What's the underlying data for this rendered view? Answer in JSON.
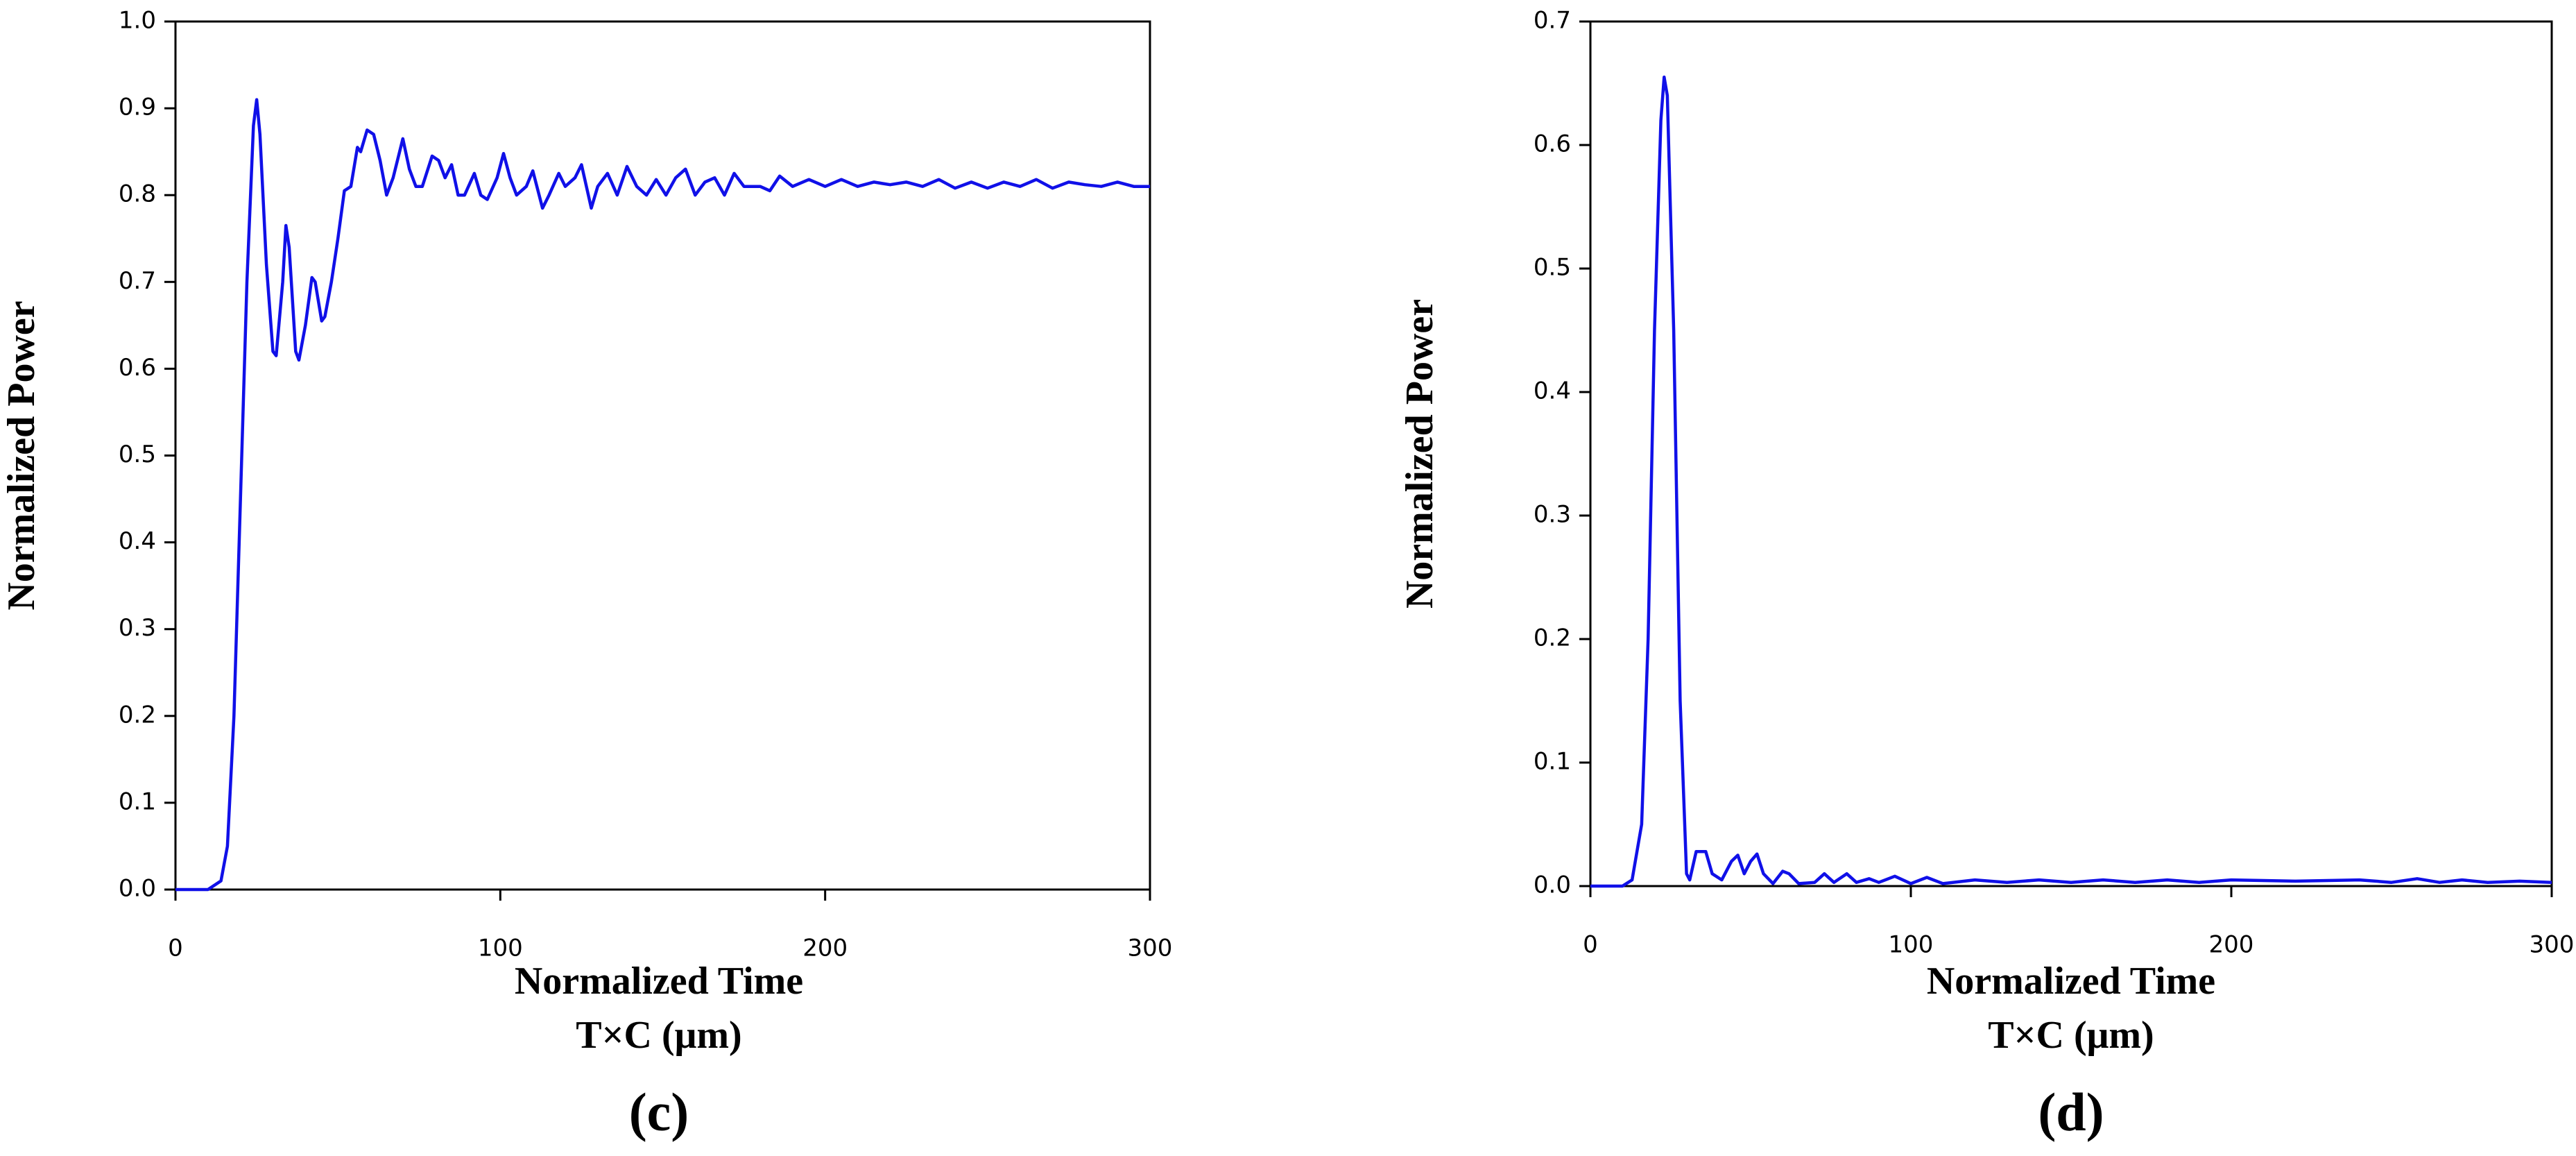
{
  "chart_data": [
    {
      "type": "line",
      "panel_label": "(c)",
      "xlabel": "Normalized Time",
      "xlabel_unit": "T×C (μm)",
      "ylabel": "Normalized Power",
      "color": "#1010e8",
      "xlim": [
        0,
        300
      ],
      "xticks": [
        0,
        100,
        200,
        300
      ],
      "ylim": [
        0,
        1
      ],
      "yticks": [
        {
          "value": 0,
          "label": "0.0"
        },
        0.1,
        0.2,
        0.3,
        0.4,
        0.5,
        0.6,
        0.7,
        0.8,
        0.9,
        {
          "value": 1,
          "label": "1.0"
        }
      ],
      "x": [
        0,
        10,
        14,
        16,
        18,
        20,
        22,
        24,
        25,
        26,
        28,
        30,
        31,
        33,
        34,
        35,
        37,
        38,
        40,
        42,
        43,
        45,
        46,
        48,
        50,
        52,
        54,
        56,
        57,
        59,
        61,
        63,
        65,
        67,
        70,
        72,
        74,
        76,
        79,
        81,
        83,
        85,
        87,
        89,
        92,
        94,
        96,
        99,
        101,
        103,
        105,
        108,
        110,
        113,
        115,
        118,
        120,
        123,
        125,
        128,
        130,
        133,
        136,
        139,
        142,
        145,
        148,
        151,
        154,
        157,
        160,
        163,
        166,
        169,
        172,
        175,
        180,
        183,
        186,
        190,
        195,
        200,
        205,
        210,
        215,
        220,
        225,
        230,
        235,
        240,
        245,
        250,
        255,
        260,
        265,
        270,
        275,
        280,
        285,
        290,
        295,
        300
      ],
      "values": [
        0,
        0,
        0.01,
        0.05,
        0.2,
        0.45,
        0.7,
        0.88,
        0.91,
        0.87,
        0.72,
        0.62,
        0.615,
        0.7,
        0.765,
        0.74,
        0.62,
        0.61,
        0.65,
        0.705,
        0.7,
        0.655,
        0.66,
        0.7,
        0.75,
        0.805,
        0.81,
        0.855,
        0.85,
        0.875,
        0.87,
        0.84,
        0.8,
        0.82,
        0.865,
        0.83,
        0.81,
        0.81,
        0.845,
        0.84,
        0.82,
        0.835,
        0.8,
        0.8,
        0.825,
        0.8,
        0.795,
        0.82,
        0.848,
        0.82,
        0.8,
        0.81,
        0.828,
        0.785,
        0.8,
        0.825,
        0.81,
        0.82,
        0.835,
        0.785,
        0.81,
        0.825,
        0.8,
        0.833,
        0.81,
        0.8,
        0.818,
        0.8,
        0.82,
        0.83,
        0.8,
        0.815,
        0.82,
        0.8,
        0.825,
        0.81,
        0.81,
        0.805,
        0.822,
        0.81,
        0.818,
        0.81,
        0.818,
        0.81,
        0.815,
        0.812,
        0.815,
        0.81,
        0.818,
        0.808,
        0.815,
        0.808,
        0.815,
        0.81,
        0.818,
        0.808,
        0.815,
        0.812,
        0.81,
        0.815,
        0.81,
        0.81
      ]
    },
    {
      "type": "line",
      "panel_label": "(d)",
      "xlabel": "Normalized Time",
      "xlabel_unit": "T×C (μm)",
      "ylabel": "Normalized Power",
      "color": "#1010e8",
      "xlim": [
        0,
        300
      ],
      "xticks": [
        0,
        100,
        200,
        300
      ],
      "ylim": [
        0,
        0.7
      ],
      "yticks": [
        {
          "value": 0,
          "label": "0.0"
        },
        0.1,
        0.2,
        0.3,
        0.4,
        0.5,
        0.6,
        0.7
      ],
      "x": [
        0,
        10,
        13,
        16,
        18,
        20,
        22,
        23,
        24,
        26,
        28,
        30,
        31,
        33,
        36,
        38,
        41,
        44,
        46,
        48,
        50,
        52,
        54,
        57,
        60,
        62,
        65,
        70,
        73,
        76,
        80,
        83,
        87,
        90,
        95,
        100,
        105,
        110,
        120,
        130,
        140,
        150,
        160,
        170,
        180,
        190,
        200,
        220,
        240,
        250,
        258,
        265,
        272,
        280,
        290,
        300
      ],
      "values": [
        0,
        0,
        0.005,
        0.05,
        0.2,
        0.45,
        0.62,
        0.655,
        0.64,
        0.45,
        0.15,
        0.01,
        0.005,
        0.028,
        0.028,
        0.01,
        0.005,
        0.02,
        0.025,
        0.01,
        0.02,
        0.026,
        0.01,
        0.002,
        0.012,
        0.01,
        0.002,
        0.003,
        0.01,
        0.003,
        0.01,
        0.003,
        0.006,
        0.003,
        0.008,
        0.002,
        0.007,
        0.002,
        0.005,
        0.003,
        0.005,
        0.003,
        0.005,
        0.003,
        0.005,
        0.003,
        0.005,
        0.004,
        0.005,
        0.003,
        0.006,
        0.003,
        0.005,
        0.003,
        0.004,
        0.003
      ]
    }
  ]
}
